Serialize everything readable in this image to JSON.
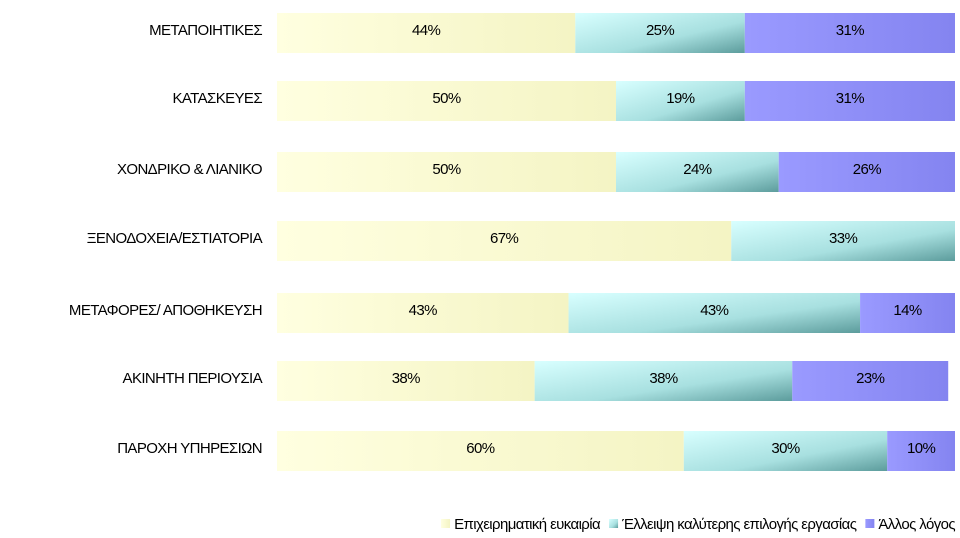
{
  "chart_data": {
    "type": "bar",
    "orientation": "horizontal",
    "stacked": true,
    "categories": [
      "ΜΕΤΑΠΟΙΗΤΙΚΕΣ",
      "ΚΑΤΑΣΚΕΥΕΣ",
      "ΧΟΝΔΡΙΚΟ & ΛΙΑΝΙΚΟ",
      "ΞΕΝΟΔΟΧΕΙΑ/ΕΣΤΙΑΤΟΡΙΑ",
      "ΜΕΤΑΦΟΡΕΣ/ ΑΠΟΘΗΚΕΥΣΗ",
      "ΑΚΙΝΗΤΗ ΠΕΡΙΟΥΣΙΑ",
      "ΠΑΡΟΧΗ ΥΠΗΡΕΣΙΩΝ"
    ],
    "series": [
      {
        "name": "Επιχειρηματική ευκαιρία",
        "color": "#ffffcc",
        "values": [
          44,
          50,
          50,
          67,
          43,
          38,
          60
        ],
        "value_labels": [
          "44%",
          "50%",
          "50%",
          "67%",
          "43%",
          "38%",
          "60%"
        ]
      },
      {
        "name": "Έλλειψη καλύτερης επιλογής εργασίας",
        "color": "#ccffff",
        "values": [
          25,
          19,
          24,
          33,
          43,
          38,
          30
        ],
        "value_labels": [
          "25%",
          "19%",
          "24%",
          "33%",
          "43%",
          "38%",
          "30%"
        ]
      },
      {
        "name": "Άλλος λόγος",
        "color": "#9999ff",
        "values": [
          31,
          31,
          26,
          null,
          14,
          23,
          10
        ],
        "value_labels": [
          "31%",
          "31%",
          "26%",
          null,
          "14%",
          "23%",
          "10%"
        ]
      }
    ],
    "xlim": [
      0,
      100
    ],
    "legend": "bottom"
  }
}
